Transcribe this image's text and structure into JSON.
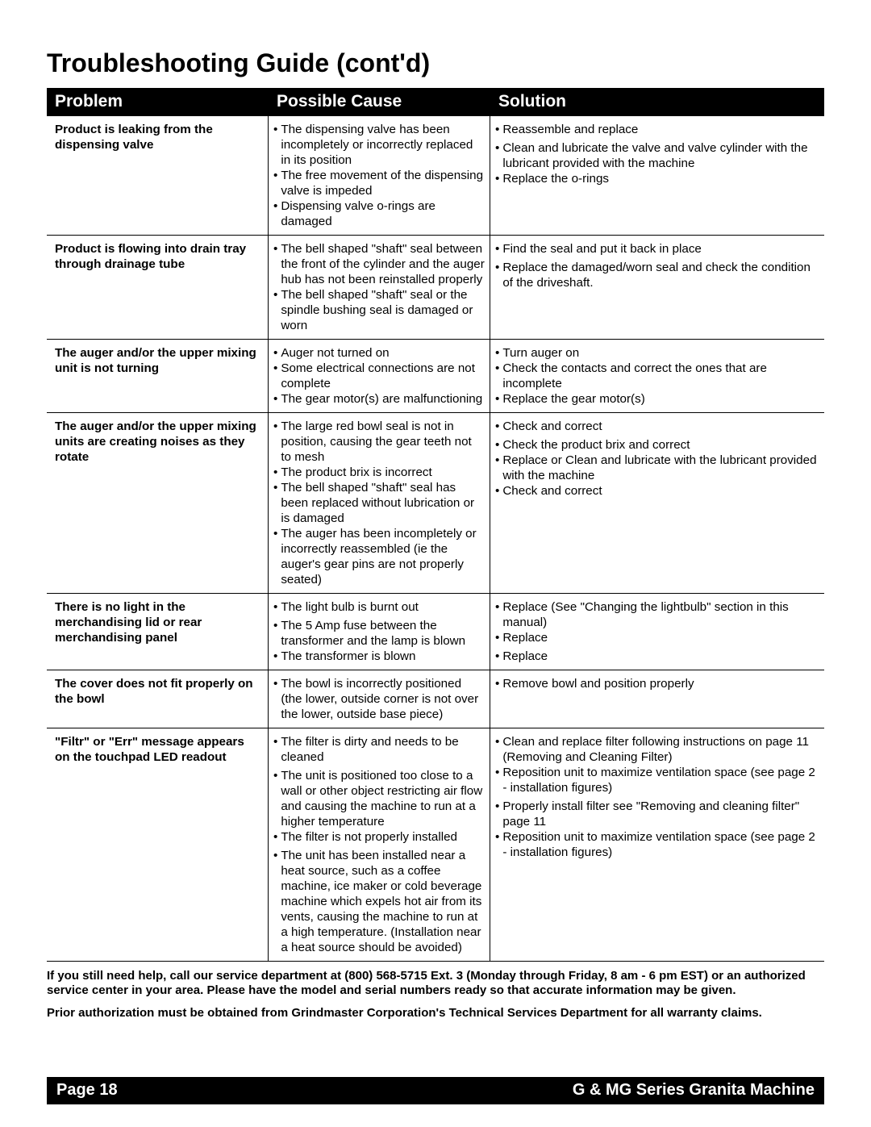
{
  "title": "Troubleshooting Guide (cont'd)",
  "headers": {
    "c1": "Problem",
    "c2": "Possible Cause",
    "c3": "Solution"
  },
  "rows": [
    {
      "problem": "Product is leaking from the dispensing valve",
      "causes": [
        "The dispensing valve has been incompletely or incorrectly replaced in its position",
        "The free movement of the dispensing valve is impeded",
        "Dispensing valve o-rings are damaged"
      ],
      "solutions": [
        "Reassemble and replace",
        "Clean and lubricate the valve and valve cylinder with the lubricant provided with the machine",
        "Replace the o-rings"
      ],
      "solGapBefore": [
        false,
        true,
        false
      ]
    },
    {
      "problem": "Product is flowing into drain tray through drainage tube",
      "causes": [
        "The bell shaped \"shaft\" seal between the front of the cylinder and the auger hub has not been reinstalled properly",
        "The bell shaped \"shaft\" seal or the spindle bushing seal is damaged or worn"
      ],
      "solutions": [
        "Find the seal and put it back in place",
        "Replace the damaged/worn seal and check the condition of the driveshaft."
      ],
      "solGapBefore": [
        false,
        true
      ]
    },
    {
      "problem": "The auger and/or the upper mixing unit is not turning",
      "causes": [
        "Auger not turned on",
        "Some electrical connections are not complete",
        "The gear motor(s) are malfunctioning"
      ],
      "solutions": [
        "Turn auger on",
        "Check the contacts and correct the ones that are incomplete",
        "Replace the gear motor(s)"
      ],
      "solGapBefore": [
        false,
        false,
        false
      ]
    },
    {
      "problem": "The auger and/or the upper mixing units are creating noises as they rotate",
      "causes": [
        "The large red bowl seal is not in position, causing the gear teeth not to mesh",
        "The product brix is incorrect",
        "The bell shaped \"shaft\" seal has been replaced without lubrication or is damaged",
        "The auger has been incompletely or incorrectly reassembled (ie the auger's gear pins are not properly seated)"
      ],
      "solutions": [
        "Check and correct",
        "Check the product brix and correct",
        "Replace or Clean and lubricate with the lubricant provided with the machine",
        "Check and correct"
      ],
      "solGapBefore": [
        false,
        true,
        false,
        false
      ]
    },
    {
      "problem": "There is no light in the merchandising lid or rear merchandising panel",
      "causes": [
        "The light bulb is burnt out",
        "The 5 Amp fuse between the transformer and the lamp is blown",
        "The transformer is blown"
      ],
      "causeGapBefore": [
        false,
        true,
        false
      ],
      "solutions": [
        "Replace (See \"Changing the lightbulb\" section in this manual)",
        "Replace",
        "Replace"
      ],
      "solGapBefore": [
        false,
        false,
        true
      ]
    },
    {
      "problem": "The cover does not fit properly on the bowl",
      "causes": [
        "The bowl is incorrectly positioned (the lower, outside corner is not over the lower, outside base piece)"
      ],
      "solutions": [
        "Remove bowl and position properly"
      ],
      "solGapBefore": [
        false
      ]
    },
    {
      "problem": "\"Filtr\" or \"Err\" message appears on the touchpad LED readout",
      "causes": [
        "The filter is dirty and needs to be cleaned",
        "The unit is positioned too close to a wall or other object restricting air flow and causing the machine to run at a higher temperature",
        "The filter is not properly installed",
        "The unit has been installed near a heat source, such as a coffee machine, ice maker or cold beverage machine which expels hot air from its vents, causing the machine to run at a high temperature.  (Installation near a heat source should be avoided)"
      ],
      "causeGapBefore": [
        false,
        true,
        false,
        true
      ],
      "solutions": [
        "Clean and replace filter following instructions on page 11 (Removing and Cleaning Filter)",
        "Reposition unit to maximize ventilation space (see page 2 - installation figures)",
        "Properly install filter see \"Removing and cleaning filter\" page 11",
        "Reposition unit to maximize ventilation space (see page 2 - installation figures)"
      ],
      "solGapBefore": [
        false,
        false,
        true,
        false
      ]
    }
  ],
  "footnote1": "If you still need help, call our service department at (800) 568-5715 Ext. 3 (Monday through Friday, 8 am - 6 pm EST) or an authorized service center in your area. Please have the model and serial numbers ready so that accurate information may be given.",
  "footnote2": "Prior authorization must be obtained from Grindmaster Corporation's Technical Services Department for all warranty claims.",
  "footer": {
    "left": "Page 18",
    "right": "G & MG Series Granita Machine"
  },
  "colors": {
    "headerBg": "#000000",
    "headerFg": "#ffffff",
    "border": "#000000",
    "bodyBg": "#ffffff",
    "bodyFg": "#000000"
  }
}
